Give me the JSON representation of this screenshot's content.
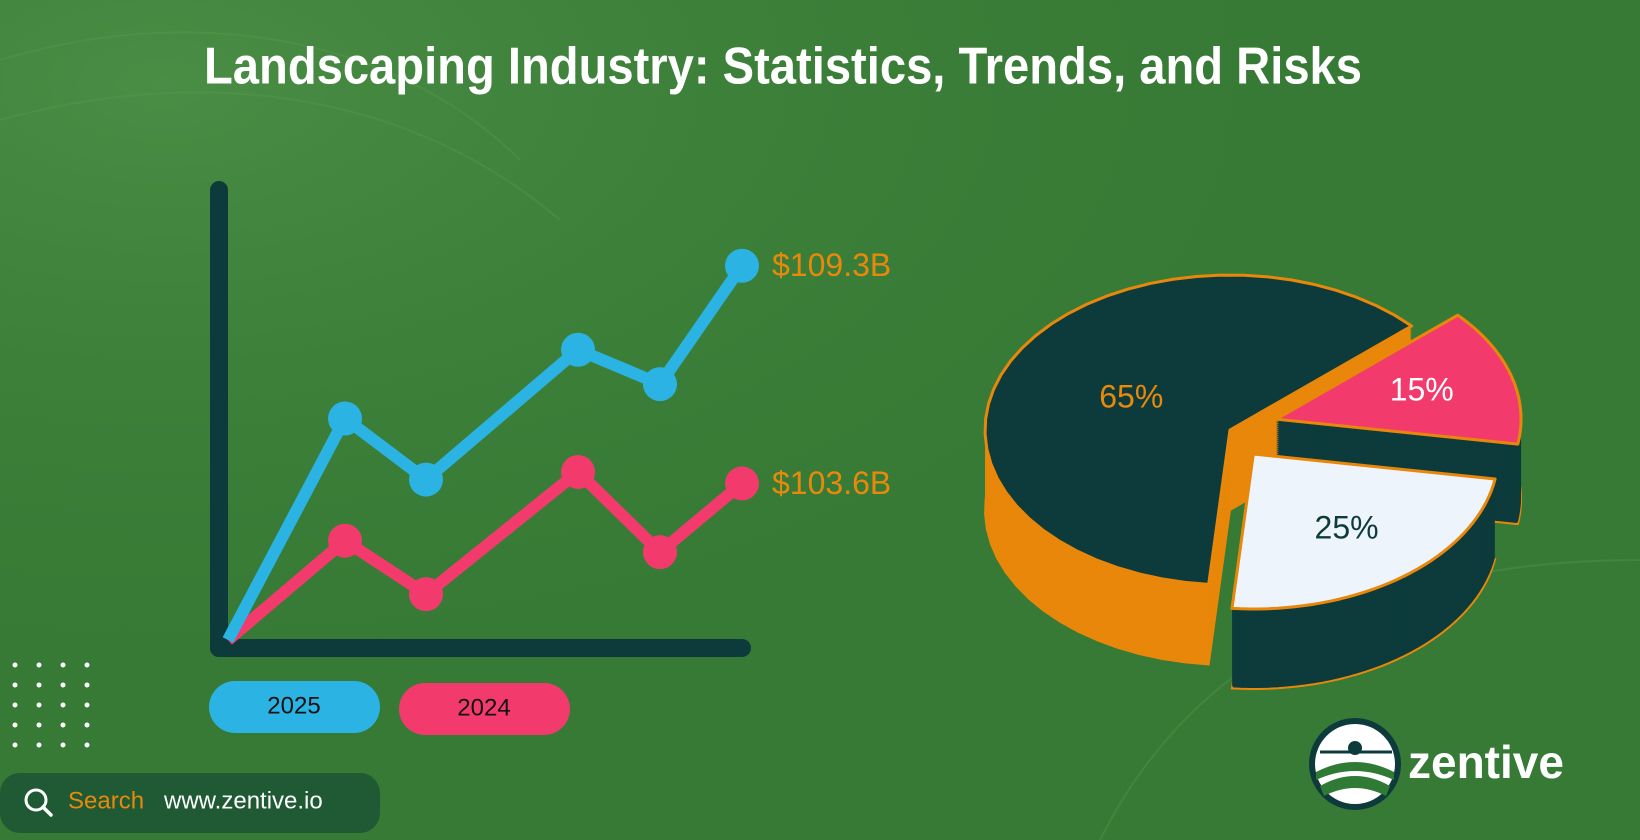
{
  "title": "Landscaping Industry: Statistics, Trends, and Risks",
  "chart_data": [
    {
      "type": "line",
      "categories": [
        null,
        null,
        null,
        null,
        null,
        null
      ],
      "ylim": [
        99.5,
        110
      ],
      "label_color": "#e8890c",
      "axis_color": "#0d3b3c",
      "series": [
        {
          "name": "2025",
          "color": "#2bb3e3",
          "values": [
            99.5,
            105.3,
            103.7,
            107.1,
            106.2,
            109.3
          ],
          "value_labels": [
            null,
            null,
            null,
            null,
            null,
            "$109.3B"
          ]
        },
        {
          "name": "2024",
          "color": "#f23b6c",
          "values": [
            99.5,
            102.1,
            100.7,
            103.9,
            101.8,
            103.6
          ],
          "value_labels": [
            null,
            null,
            null,
            null,
            null,
            "$103.6B"
          ]
        }
      ]
    },
    {
      "type": "pie",
      "values": [
        65,
        15,
        25
      ],
      "value_labels": [
        "65%",
        "15%",
        "25%"
      ],
      "colors": [
        "#0d3b3c",
        "#f23b6c",
        "#eef4fb"
      ],
      "label_colors": [
        "#e8890c",
        "#ffffff",
        "#0d3b3c"
      ],
      "side_colors": [
        "#e8870a",
        "#0d3b3c",
        "#0d3b3c"
      ],
      "edge_color": "#e8870a"
    }
  ],
  "search": {
    "label": "Search",
    "url": "www.zentive.io"
  },
  "logo": {
    "text": "zentive"
  }
}
